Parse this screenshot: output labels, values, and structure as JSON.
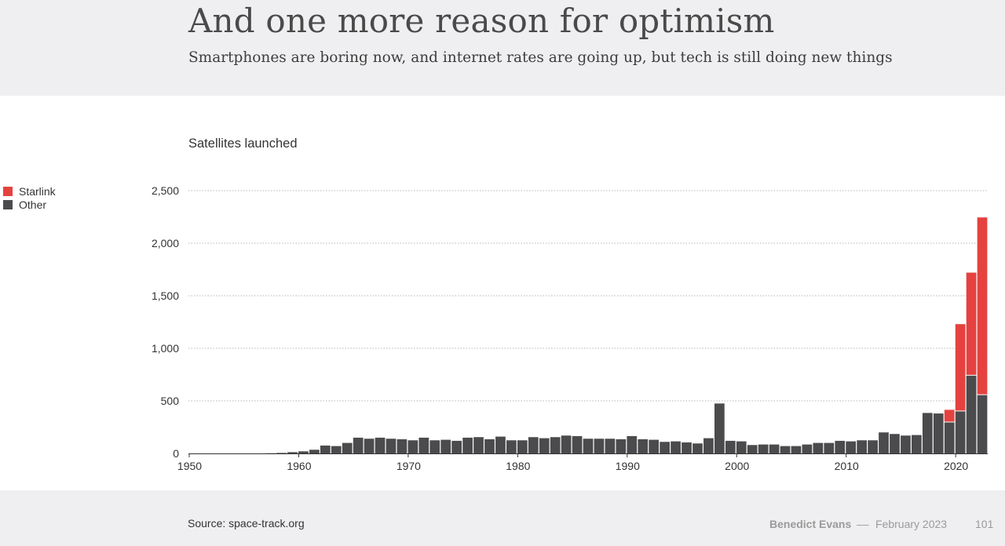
{
  "header": {
    "title": "And one more reason for optimism",
    "subtitle": "Smartphones are boring now, and internet rates are going up, but tech is still doing new things"
  },
  "footer": {
    "source": "Source: space-track.org",
    "author": "Benedict Evans",
    "dash": "––",
    "date": "February 2023",
    "page": "101"
  },
  "colors": {
    "starlink": "#e5423f",
    "other": "#4b4b4d",
    "grid": "#b5b5b5"
  },
  "chart_data": {
    "type": "bar",
    "stacked": true,
    "title": "Satellites launched",
    "legend_position": "top-left",
    "grid": true,
    "ylim": [
      0,
      2500
    ],
    "yticks": [
      0,
      500,
      1000,
      1500,
      2000,
      2500
    ],
    "ytick_labels": [
      "0",
      "500",
      "1,000",
      "1,500",
      "2,000",
      "2,500"
    ],
    "xticks": [
      1950,
      1960,
      1970,
      1980,
      1990,
      2000,
      2010,
      2020
    ],
    "categories": [
      1950,
      1951,
      1952,
      1953,
      1954,
      1955,
      1956,
      1957,
      1958,
      1959,
      1960,
      1961,
      1962,
      1963,
      1964,
      1965,
      1966,
      1967,
      1968,
      1969,
      1970,
      1971,
      1972,
      1973,
      1974,
      1975,
      1976,
      1977,
      1978,
      1979,
      1980,
      1981,
      1982,
      1983,
      1984,
      1985,
      1986,
      1987,
      1988,
      1989,
      1990,
      1991,
      1992,
      1993,
      1994,
      1995,
      1996,
      1997,
      1998,
      1999,
      2000,
      2001,
      2002,
      2003,
      2004,
      2005,
      2006,
      2007,
      2008,
      2009,
      2010,
      2011,
      2012,
      2013,
      2014,
      2015,
      2016,
      2017,
      2018,
      2019,
      2020,
      2021,
      2022
    ],
    "series": [
      {
        "name": "Other",
        "values": [
          0,
          0,
          0,
          0,
          0,
          0,
          0,
          2,
          5,
          12,
          20,
          35,
          75,
          70,
          100,
          150,
          140,
          150,
          140,
          135,
          125,
          150,
          125,
          130,
          120,
          150,
          155,
          135,
          160,
          125,
          125,
          155,
          145,
          155,
          170,
          165,
          140,
          140,
          140,
          135,
          165,
          135,
          130,
          110,
          115,
          105,
          95,
          145,
          475,
          120,
          115,
          80,
          85,
          85,
          70,
          70,
          85,
          100,
          100,
          120,
          115,
          125,
          125,
          200,
          185,
          170,
          175,
          385,
          380,
          295,
          400,
          740,
          555
        ]
      },
      {
        "name": "Starlink",
        "values": [
          0,
          0,
          0,
          0,
          0,
          0,
          0,
          0,
          0,
          0,
          0,
          0,
          0,
          0,
          0,
          0,
          0,
          0,
          0,
          0,
          0,
          0,
          0,
          0,
          0,
          0,
          0,
          0,
          0,
          0,
          0,
          0,
          0,
          0,
          0,
          0,
          0,
          0,
          0,
          0,
          0,
          0,
          0,
          0,
          0,
          0,
          0,
          0,
          0,
          0,
          0,
          0,
          0,
          0,
          0,
          0,
          0,
          0,
          0,
          0,
          0,
          0,
          0,
          0,
          0,
          0,
          0,
          0,
          0,
          120,
          830,
          980,
          1690
        ]
      }
    ]
  }
}
